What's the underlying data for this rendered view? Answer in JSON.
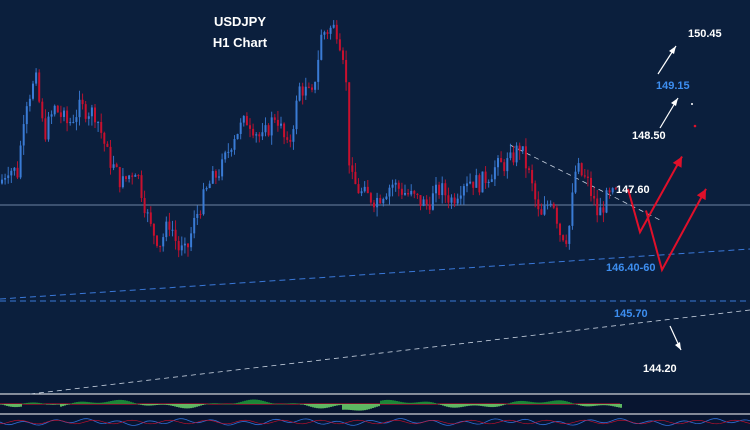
{
  "chart_data": {
    "type": "candlestick",
    "title": "USDJPY",
    "subtitle": "H1 Chart",
    "xlabel": "",
    "ylabel": "",
    "grid": false,
    "ylim": [
      143.6,
      150.9
    ],
    "colors": {
      "background": "#0b1f3d",
      "bull": "#3a7bd5",
      "bear": "#c8102e",
      "scenario": "#e0102a",
      "target_up": "#ffffff",
      "support_label": "#3d8ef0"
    },
    "price_path": [
      [
        0,
        147.5
      ],
      [
        8,
        147.8
      ],
      [
        18,
        147.7
      ],
      [
        25,
        149.0
      ],
      [
        36,
        149.4
      ],
      [
        44,
        148.4
      ],
      [
        55,
        148.9
      ],
      [
        68,
        148.6
      ],
      [
        80,
        148.9
      ],
      [
        96,
        148.8
      ],
      [
        108,
        148.0
      ],
      [
        122,
        147.5
      ],
      [
        136,
        147.8
      ],
      [
        150,
        146.7
      ],
      [
        160,
        146.4
      ],
      [
        170,
        146.8
      ],
      [
        178,
        146.3
      ],
      [
        186,
        146.2
      ],
      [
        196,
        146.9
      ],
      [
        210,
        147.5
      ],
      [
        222,
        147.8
      ],
      [
        234,
        148.4
      ],
      [
        248,
        148.7
      ],
      [
        262,
        148.3
      ],
      [
        276,
        148.8
      ],
      [
        288,
        148.1
      ],
      [
        300,
        149.3
      ],
      [
        312,
        149.1
      ],
      [
        322,
        150.3
      ],
      [
        336,
        150.4
      ],
      [
        345,
        149.8
      ],
      [
        350,
        147.6
      ],
      [
        362,
        147.3
      ],
      [
        376,
        147.2
      ],
      [
        392,
        147.5
      ],
      [
        408,
        147.3
      ],
      [
        426,
        147.1
      ],
      [
        440,
        147.4
      ],
      [
        452,
        147.2
      ],
      [
        466,
        147.6
      ],
      [
        480,
        147.5
      ],
      [
        496,
        147.8
      ],
      [
        510,
        147.9
      ],
      [
        520,
        148.2
      ],
      [
        530,
        147.6
      ],
      [
        540,
        146.8
      ],
      [
        552,
        147.3
      ],
      [
        560,
        146.6
      ],
      [
        568,
        146.5
      ],
      [
        576,
        147.8
      ],
      [
        588,
        147.5
      ],
      [
        598,
        146.9
      ],
      [
        606,
        147.2
      ],
      [
        616,
        147.3
      ]
    ],
    "levels": [
      {
        "label": "147.60",
        "value": 147.6,
        "style": "horizontal"
      },
      {
        "label": "146.40-60",
        "value": 146.5,
        "style": "trendline"
      },
      {
        "label": "145.70",
        "value": 145.7,
        "style": "trendline"
      },
      {
        "label": "148.50",
        "value": 148.5,
        "style": "target"
      },
      {
        "label": "149.15",
        "value": 149.15,
        "style": "target"
      },
      {
        "label": "150.45",
        "value": 150.45,
        "style": "target"
      },
      {
        "label": "144.20",
        "value": 144.2,
        "style": "target"
      }
    ],
    "scenarios": [
      {
        "name": "",
        "points": [
          [
            628,
            147.4
          ],
          [
            640,
            146.6
          ],
          [
            682,
            148.0
          ]
        ]
      },
      {
        "name": "",
        "points": [
          [
            646,
            147.0
          ],
          [
            662,
            145.9
          ],
          [
            706,
            147.4
          ]
        ]
      }
    ]
  }
}
